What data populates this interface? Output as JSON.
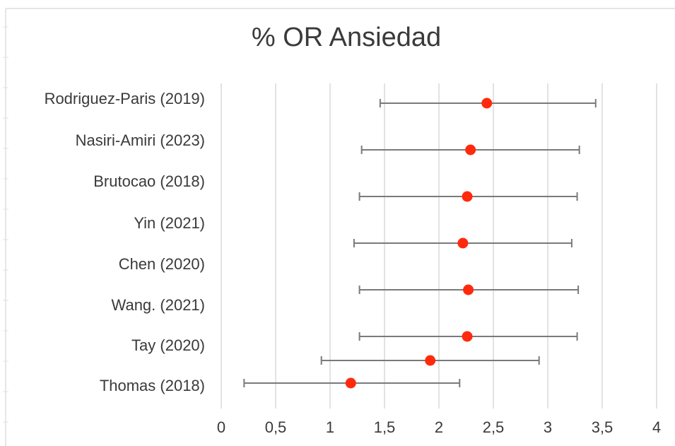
{
  "chart_data": {
    "type": "forest",
    "title": "% OR Ansiedad",
    "xlabel": "",
    "ylabel": "",
    "xlim": [
      0,
      4
    ],
    "x_ticks": [
      "0",
      "0,5",
      "1",
      "1,5",
      "2",
      "2,5",
      "3",
      "3,5",
      "4"
    ],
    "grid": "vertical",
    "point_color": "#ff2a0d",
    "ci_color": "#7a7a7a",
    "row_labels": [
      "Rodriguez-Paris (2019)",
      "Nasiri-Amiri (2023)",
      "Brutocao  (2018)",
      "Yin (2021)",
      "Chen  (2020)",
      "Wang. (2021)",
      "Tay (2020)",
      "Thomas (2018)"
    ],
    "points": [
      {
        "estimate": 2.44,
        "lower": 1.46,
        "upper": 3.44
      },
      {
        "estimate": 2.29,
        "lower": 1.29,
        "upper": 3.29
      },
      {
        "estimate": 2.26,
        "lower": 1.27,
        "upper": 3.27
      },
      {
        "estimate": 2.22,
        "lower": 1.22,
        "upper": 3.22
      },
      {
        "estimate": 2.27,
        "lower": 1.27,
        "upper": 3.28
      },
      {
        "estimate": 2.26,
        "lower": 1.27,
        "upper": 3.27
      },
      {
        "estimate": 1.92,
        "lower": 0.92,
        "upper": 2.92
      },
      {
        "estimate": 1.19,
        "lower": 0.21,
        "upper": 2.19
      }
    ]
  }
}
